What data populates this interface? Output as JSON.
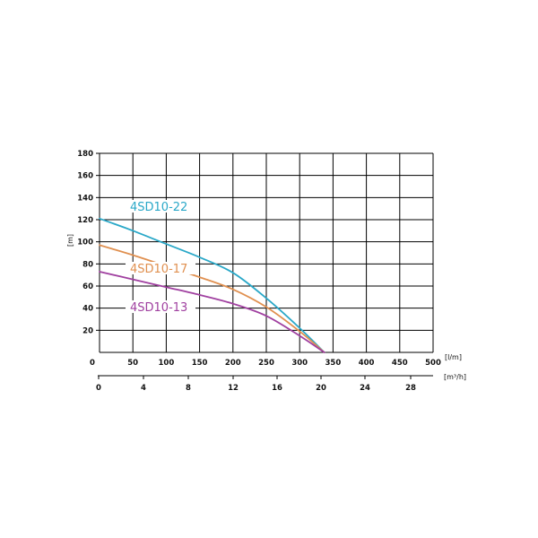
{
  "chart_data": {
    "type": "line",
    "title": "",
    "ylabel": "[m]",
    "ylim": [
      0,
      180
    ],
    "yticks": [
      20,
      40,
      60,
      80,
      100,
      120,
      140,
      160,
      180
    ],
    "xlabel_primary": "[l/m]",
    "xlim_primary": [
      0,
      500
    ],
    "xticks_primary": [
      0,
      50,
      100,
      150,
      200,
      250,
      300,
      350,
      400,
      450,
      500
    ],
    "xlabel_secondary": "[m³/h]",
    "xticks_secondary": [
      0,
      4,
      8,
      12,
      16,
      20,
      24,
      28
    ],
    "grid": true,
    "series": [
      {
        "name": "4SD10-22",
        "color": "#2aa8c8",
        "x": [
          0,
          50,
          100,
          150,
          200,
          250,
          300,
          337
        ],
        "y": [
          121,
          110,
          98,
          86,
          72,
          49,
          22,
          0
        ]
      },
      {
        "name": "4SD10-17",
        "color": "#e09050",
        "x": [
          0,
          50,
          100,
          150,
          200,
          250,
          300,
          337
        ],
        "y": [
          97,
          88,
          78,
          68,
          57,
          41,
          19,
          0
        ]
      },
      {
        "name": "4SD10-13",
        "color": "#a040a0",
        "x": [
          0,
          50,
          100,
          150,
          200,
          250,
          300,
          337
        ],
        "y": [
          73,
          66,
          59,
          52,
          44,
          33,
          15,
          0
        ]
      }
    ]
  }
}
